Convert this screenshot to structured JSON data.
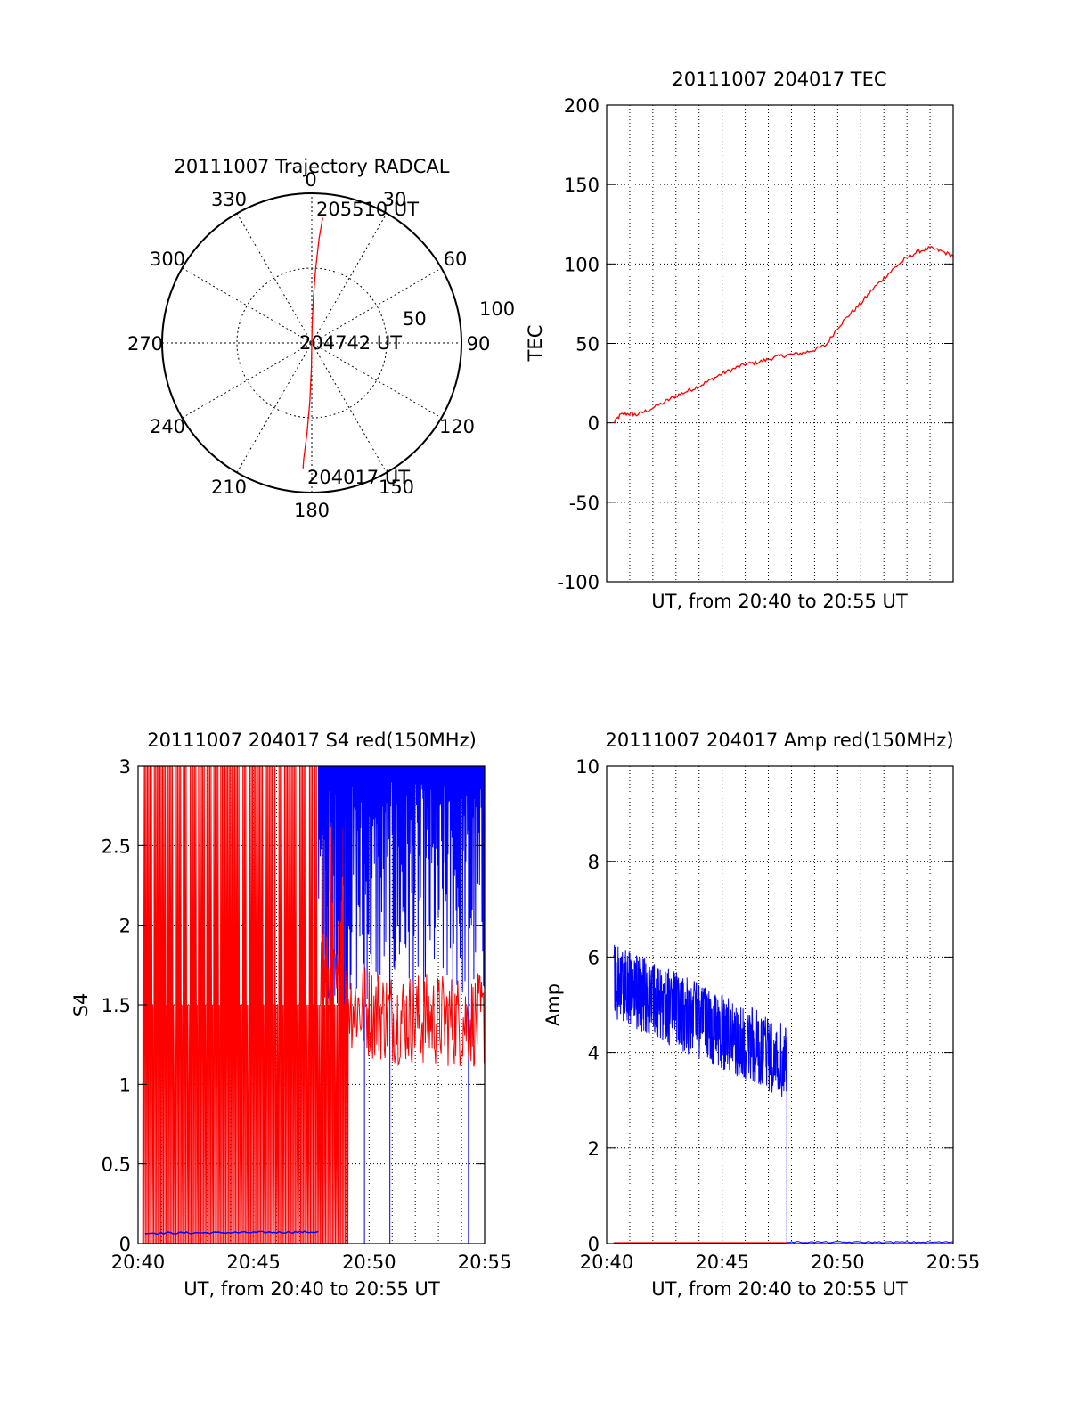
{
  "chart_data": [
    {
      "type": "polar",
      "title": "20111007 Trajectory RADCAL",
      "angle_labels": [
        "0",
        "30",
        "60",
        "90",
        "120",
        "150",
        "180",
        "210",
        "240",
        "270",
        "300",
        "330"
      ],
      "radius_labels": [
        "50",
        "100"
      ],
      "radius_max": 100,
      "annotations": [
        "205510 UT",
        "204742 UT",
        "204017 UT"
      ],
      "trajectory": {
        "color": "#ff0000",
        "points_az_r": [
          [
            5,
            84
          ],
          [
            4,
            70
          ],
          [
            3,
            50
          ],
          [
            2,
            30
          ],
          [
            1,
            12
          ],
          [
            0,
            0
          ],
          [
            181,
            18
          ],
          [
            182,
            40
          ],
          [
            183,
            60
          ],
          [
            184,
            78
          ],
          [
            184,
            84
          ]
        ]
      }
    },
    {
      "type": "line",
      "title": "20111007 204017 TEC",
      "xlabel": "UT, from 20:40 to 20:55 UT",
      "ylabel": "TEC",
      "xlim": [
        0,
        15
      ],
      "ylim": [
        -100,
        200
      ],
      "yticks": [
        "200",
        "150",
        "100",
        "50",
        "0",
        "-50",
        "-100"
      ],
      "grid": true,
      "series": [
        {
          "color": "#ff0000",
          "x": [
            0.3,
            0.6,
            1.0,
            1.3,
            1.8,
            2.5,
            3.0,
            3.5,
            4.0,
            4.5,
            5.0,
            5.5,
            6.0,
            6.5,
            7.0,
            7.5,
            8.0,
            8.5,
            9.0,
            9.5,
            10.0,
            10.5,
            11.0,
            11.5,
            12.0,
            12.5,
            13.0,
            13.5,
            14.0,
            14.5,
            15.0
          ],
          "y": [
            0,
            5,
            6,
            5,
            8,
            13,
            17,
            20,
            23,
            27,
            31,
            34,
            37,
            38,
            40,
            42,
            43,
            44,
            46,
            49,
            60,
            68,
            75,
            84,
            91,
            98,
            104,
            108,
            110,
            108,
            105
          ]
        }
      ]
    },
    {
      "type": "line",
      "title": "20111007 204017 S4 red(150MHz)",
      "xlabel": "UT, from 20:40 to 20:55 UT",
      "ylabel": "S4",
      "xlim": [
        0,
        15
      ],
      "ylim": [
        0,
        3
      ],
      "xticks": [
        "20:40",
        "20:45",
        "20:50",
        "20:55"
      ],
      "yticks": [
        "3",
        "2.5",
        "2",
        "1.5",
        "1",
        "0.5",
        "0"
      ],
      "grid": true,
      "series": [
        {
          "color": "#ff0000",
          "x_start": 0.2,
          "x_end": 15,
          "y_before_drop": "0–3 spikes",
          "y_after_drop_level": 1.5
        },
        {
          "color": "#0000ff",
          "x_start": 0.3,
          "x_end": 15,
          "y_before_drop_level": 0.07,
          "y_after_drop": "0–3 spikes"
        }
      ],
      "transition_x": 7.8
    },
    {
      "type": "line",
      "title": "20111007 204017 Amp red(150MHz)",
      "xlabel": "UT, from 20:40 to 20:55 UT",
      "ylabel": "Amp",
      "xlim": [
        0,
        15
      ],
      "ylim": [
        0,
        10
      ],
      "xticks": [
        "20:40",
        "20:45",
        "20:50",
        "20:55"
      ],
      "yticks": [
        "10",
        "8",
        "6",
        "4",
        "2",
        "0"
      ],
      "grid": true,
      "series": [
        {
          "color": "#0000ff",
          "segment": {
            "x": [
              0.3,
              7.8
            ],
            "center": [
              5.5,
              3.8
            ],
            "spread": 0.5
          },
          "after_level": 0.03
        },
        {
          "color": "#ff0000",
          "level": 0.02
        }
      ]
    }
  ]
}
